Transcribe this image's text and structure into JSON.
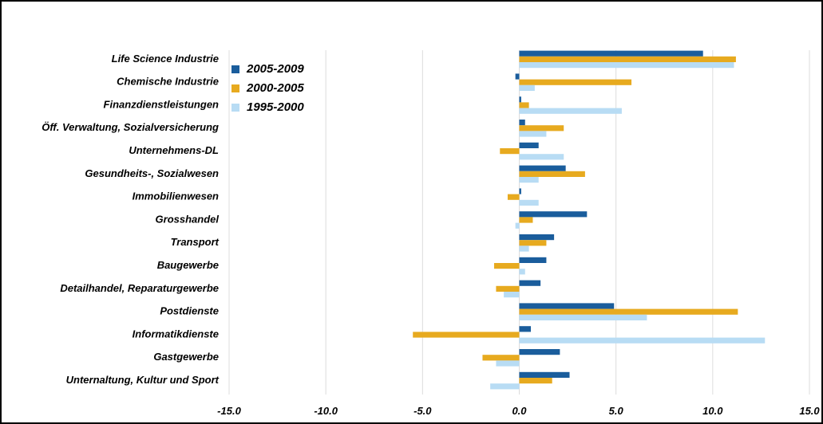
{
  "chart_data": {
    "type": "bar",
    "orientation": "horizontal",
    "title": "",
    "xlabel": "",
    "ylabel": "",
    "xlim": [
      -15,
      15
    ],
    "xticks": [
      "-15.0",
      "-10.0",
      "-5.0",
      "0.0",
      "5.0",
      "10.0",
      "15.0"
    ],
    "grid": true,
    "legend_position": "top-left",
    "categories": [
      "Life Science Industrie",
      "Chemische Industrie",
      "Finanzdienstleistungen",
      "Öff. Verwaltung, Sozialversicherung",
      "Unternehmens-DL",
      "Gesundheits-, Sozialwesen",
      "Immobilienwesen",
      "Grosshandel",
      "Transport",
      "Baugewerbe",
      "Detailhandel, Reparaturgewerbe",
      "Postdienste",
      "Informatikdienste",
      "Gastgewerbe",
      "Unternaltung, Kultur und Sport"
    ],
    "series": [
      {
        "name": "2005-2009",
        "color": "#1a5d9c",
        "values": [
          9.5,
          -0.2,
          0.1,
          0.3,
          1.0,
          2.4,
          0.1,
          3.5,
          1.8,
          1.4,
          1.1,
          4.9,
          0.6,
          2.1,
          2.6
        ]
      },
      {
        "name": "2000-2005",
        "color": "#e7aa1f",
        "values": [
          11.2,
          5.8,
          0.5,
          2.3,
          -1.0,
          3.4,
          -0.6,
          0.7,
          1.4,
          -1.3,
          -1.2,
          11.3,
          -5.5,
          -1.9,
          1.7
        ]
      },
      {
        "name": "1995-2000",
        "color": "#b8dcf4",
        "values": [
          11.1,
          0.8,
          5.3,
          1.4,
          2.3,
          1.0,
          1.0,
          -0.2,
          0.5,
          0.3,
          -0.8,
          6.6,
          12.7,
          -1.2,
          -1.5
        ]
      }
    ]
  }
}
